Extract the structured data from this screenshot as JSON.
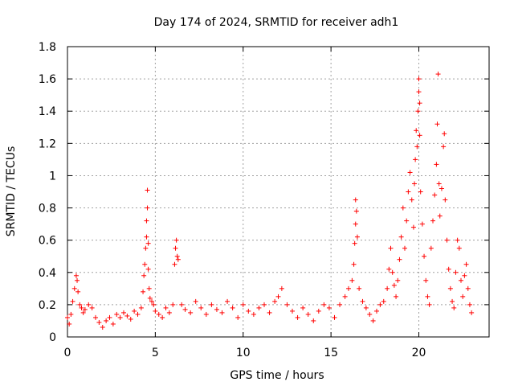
{
  "chart_data": {
    "type": "scatter",
    "title": "Day 174 of 2024, SRMTID for receiver adh1",
    "xlabel": "GPS time / hours",
    "ylabel": "SRMTID / TECUs",
    "xlim": [
      0,
      24
    ],
    "ylim": [
      0,
      1.8
    ],
    "xticks": [
      0,
      5,
      10,
      15,
      20
    ],
    "xtick_labels": [
      "0",
      "5",
      "10",
      "15",
      "20"
    ],
    "yticks": [
      0,
      0.2,
      0.4,
      0.6,
      0.8,
      1,
      1.2,
      1.4,
      1.6,
      1.8
    ],
    "ytick_labels": [
      "0",
      "0.2",
      "0.4",
      "0.6",
      "0.8",
      "1",
      "1.2",
      "1.4",
      "1.6",
      "1.8"
    ],
    "grid": true,
    "marker": "plus",
    "color": "#ff0000",
    "series": [
      {
        "name": "adh1",
        "x": [
          0.0,
          0.1,
          0.2,
          0.3,
          0.4,
          0.5,
          0.55,
          0.6,
          0.7,
          0.8,
          0.9,
          1.0,
          1.2,
          1.4,
          1.6,
          1.8,
          2.0,
          2.2,
          2.4,
          2.6,
          2.8,
          3.0,
          3.2,
          3.4,
          3.6,
          3.8,
          4.0,
          4.2,
          4.3,
          4.35,
          4.4,
          4.45,
          4.5,
          4.5,
          4.55,
          4.55,
          4.6,
          4.6,
          4.65,
          4.7,
          4.8,
          4.9,
          5.0,
          5.2,
          5.4,
          5.6,
          5.8,
          6.0,
          6.1,
          6.15,
          6.2,
          6.25,
          6.3,
          6.5,
          6.7,
          7.0,
          7.3,
          7.6,
          7.9,
          8.2,
          8.5,
          8.8,
          9.1,
          9.4,
          9.7,
          10.0,
          10.3,
          10.6,
          10.9,
          11.2,
          11.5,
          11.8,
          12.0,
          12.2,
          12.5,
          12.8,
          13.1,
          13.4,
          13.7,
          14.0,
          14.3,
          14.6,
          14.9,
          15.2,
          15.5,
          15.8,
          16.0,
          16.2,
          16.3,
          16.35,
          16.4,
          16.4,
          16.45,
          16.5,
          16.6,
          16.8,
          17.0,
          17.2,
          17.4,
          17.6,
          17.8,
          18.0,
          18.2,
          18.3,
          18.4,
          18.5,
          18.6,
          18.7,
          18.8,
          18.9,
          19.0,
          19.1,
          19.2,
          19.3,
          19.4,
          19.5,
          19.6,
          19.7,
          19.75,
          19.8,
          19.85,
          19.9,
          19.95,
          20.0,
          20.0,
          20.05,
          20.05,
          20.1,
          20.2,
          20.3,
          20.4,
          20.5,
          20.6,
          20.7,
          20.8,
          20.9,
          21.0,
          21.05,
          21.1,
          21.15,
          21.2,
          21.3,
          21.4,
          21.45,
          21.5,
          21.6,
          21.7,
          21.8,
          21.9,
          22.0,
          22.1,
          22.2,
          22.3,
          22.4,
          22.5,
          22.6,
          22.7,
          22.8,
          22.9,
          23.0
        ],
        "y": [
          0.12,
          0.08,
          0.14,
          0.22,
          0.3,
          0.38,
          0.35,
          0.28,
          0.2,
          0.18,
          0.15,
          0.17,
          0.2,
          0.18,
          0.12,
          0.09,
          0.06,
          0.1,
          0.12,
          0.08,
          0.14,
          0.12,
          0.15,
          0.13,
          0.11,
          0.16,
          0.14,
          0.18,
          0.28,
          0.38,
          0.45,
          0.55,
          0.62,
          0.72,
          0.8,
          0.91,
          0.58,
          0.42,
          0.3,
          0.24,
          0.22,
          0.2,
          0.16,
          0.14,
          0.12,
          0.18,
          0.15,
          0.2,
          0.45,
          0.55,
          0.6,
          0.5,
          0.48,
          0.2,
          0.17,
          0.15,
          0.22,
          0.18,
          0.14,
          0.2,
          0.17,
          0.15,
          0.22,
          0.18,
          0.12,
          0.2,
          0.16,
          0.14,
          0.18,
          0.2,
          0.15,
          0.22,
          0.25,
          0.3,
          0.2,
          0.16,
          0.12,
          0.18,
          0.14,
          0.1,
          0.16,
          0.2,
          0.18,
          0.12,
          0.2,
          0.25,
          0.3,
          0.35,
          0.45,
          0.58,
          0.7,
          0.85,
          0.78,
          0.62,
          0.3,
          0.22,
          0.18,
          0.14,
          0.1,
          0.16,
          0.2,
          0.22,
          0.3,
          0.42,
          0.55,
          0.4,
          0.32,
          0.25,
          0.35,
          0.48,
          0.62,
          0.8,
          0.55,
          0.72,
          0.9,
          1.02,
          0.85,
          0.68,
          0.95,
          1.1,
          1.28,
          1.18,
          1.4,
          1.52,
          1.6,
          1.45,
          1.25,
          0.9,
          0.7,
          0.5,
          0.35,
          0.25,
          0.2,
          0.55,
          0.72,
          0.88,
          1.07,
          1.32,
          1.63,
          0.95,
          0.75,
          0.92,
          1.18,
          1.26,
          0.85,
          0.6,
          0.42,
          0.3,
          0.22,
          0.18,
          0.4,
          0.6,
          0.55,
          0.35,
          0.25,
          0.38,
          0.45,
          0.3,
          0.2,
          0.15
        ]
      }
    ]
  }
}
